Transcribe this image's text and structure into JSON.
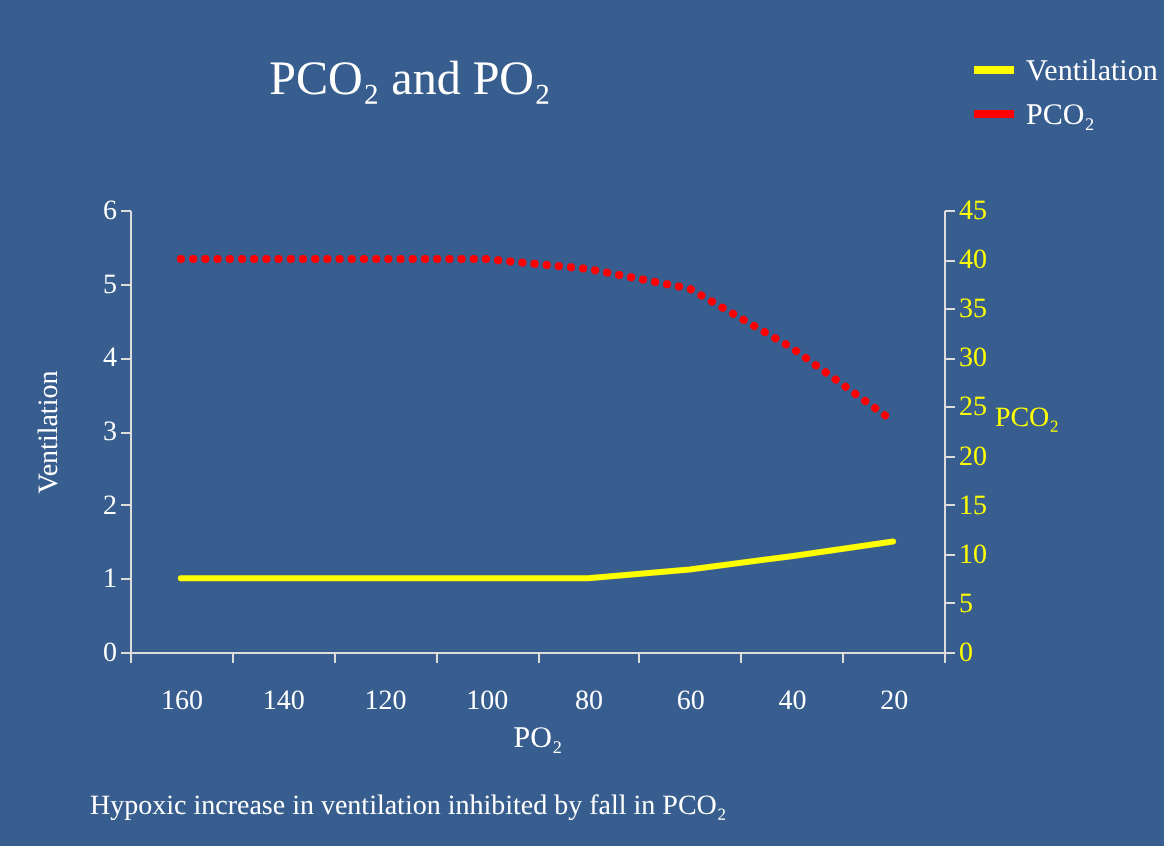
{
  "chart_data": {
    "type": "line",
    "title": "PCO₂ and PO₂",
    "xlabel": "PO₂",
    "ylabel": "Ventilation",
    "y2label": "PCO₂",
    "categories": [
      "160",
      "140",
      "120",
      "100",
      "80",
      "60",
      "40",
      "20"
    ],
    "series": [
      {
        "name": "Ventilation",
        "color": "#ffff00",
        "line_style": "solid",
        "values": [
          1,
          1,
          1,
          1,
          1,
          1.12,
          1.3,
          1.5
        ]
      },
      {
        "name": "PCO₂",
        "color": "#ff0000",
        "line_style": "dotted",
        "axis": "y2",
        "values": [
          40,
          40,
          40,
          40,
          39,
          37,
          31,
          23.5
        ]
      }
    ],
    "ylim": [
      0,
      6
    ],
    "yticks": [
      0,
      1,
      2,
      3,
      4,
      5,
      6
    ],
    "y2lim": [
      0,
      45
    ],
    "y2ticks": [
      0,
      5,
      10,
      15,
      20,
      25,
      30,
      35,
      40,
      45
    ],
    "grid": false,
    "legend": "top right",
    "marker": "none",
    "annotations": [
      "Hypoxic increase in ventilation inhibited by fall in PCO₂"
    ]
  }
}
